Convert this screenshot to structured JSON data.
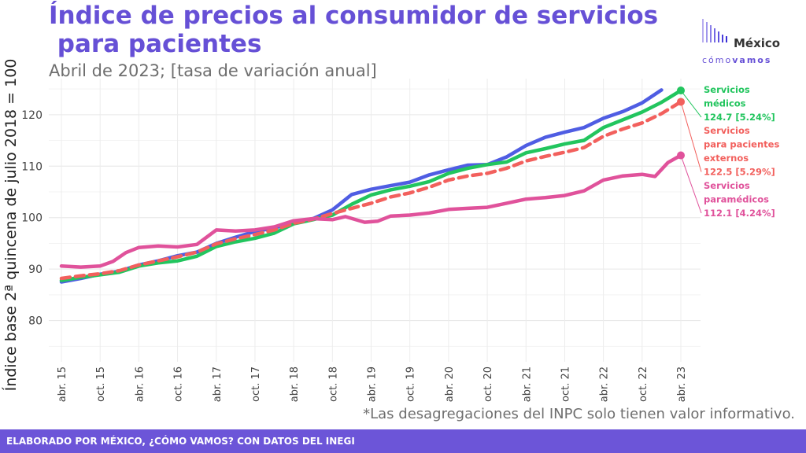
{
  "header": {
    "title": "Índice de precios al consumidor de servicios\n para pacientes",
    "subtitle": "Abril de 2023; [tasa de variación anual]"
  },
  "logo": {
    "name": "México",
    "tagline_a": "cómo",
    "tagline_b": "vamos"
  },
  "note": "*Las desagregaciones del INPC solo tienen valor informativo.",
  "footer": "ELABORADO POR MÉXICO, ¿CÓMO VAMOS? CON DATOS DEL INEGI",
  "colors": {
    "title": "#6650d6",
    "footer": "#6c55d8",
    "series_blue": "#4f5de3",
    "series_green": "#22c55e",
    "series_red": "#f2605d",
    "series_pink": "#e0529b"
  },
  "chart_data": {
    "type": "line",
    "ylabel": "Índice base 2ª quincena de julio 2018 = 100",
    "ylim": [
      72,
      127
    ],
    "yticks": [
      80,
      90,
      100,
      110,
      120
    ],
    "xlim": [
      0,
      96
    ],
    "xticks": [
      {
        "index": 0,
        "label": "abr. 15"
      },
      {
        "index": 6,
        "label": "oct. 15"
      },
      {
        "index": 12,
        "label": "abr. 16"
      },
      {
        "index": 18,
        "label": "oct. 16"
      },
      {
        "index": 24,
        "label": "abr. 17"
      },
      {
        "index": 30,
        "label": "oct. 17"
      },
      {
        "index": 36,
        "label": "abr. 18"
      },
      {
        "index": 42,
        "label": "oct. 18"
      },
      {
        "index": 48,
        "label": "abr. 19"
      },
      {
        "index": 54,
        "label": "oct. 19"
      },
      {
        "index": 60,
        "label": "abr. 20"
      },
      {
        "index": 66,
        "label": "oct. 20"
      },
      {
        "index": 72,
        "label": "abr. 21"
      },
      {
        "index": 78,
        "label": "oct. 21"
      },
      {
        "index": 84,
        "label": "abr. 22"
      },
      {
        "index": 90,
        "label": "oct. 22"
      },
      {
        "index": 96,
        "label": "abr. 23"
      }
    ],
    "grid": true,
    "legend": "direct labels at right",
    "series": [
      {
        "color": "#4f5de3",
        "dash": false,
        "points": [
          [
            0,
            87.5
          ],
          [
            3,
            88.2
          ],
          [
            6,
            89.0
          ],
          [
            9,
            89.6
          ],
          [
            12,
            90.8
          ],
          [
            15,
            91.6
          ],
          [
            18,
            92.6
          ],
          [
            21,
            93.3
          ],
          [
            24,
            95.0
          ],
          [
            27,
            96.2
          ],
          [
            30,
            97.3
          ],
          [
            33,
            98.0
          ],
          [
            36,
            99.0
          ],
          [
            39,
            99.8
          ],
          [
            42,
            101.5
          ],
          [
            45,
            104.5
          ],
          [
            48,
            105.5
          ],
          [
            51,
            106.2
          ],
          [
            54,
            106.9
          ],
          [
            57,
            108.3
          ],
          [
            60,
            109.3
          ],
          [
            63,
            110.2
          ],
          [
            66,
            110.3
          ],
          [
            69,
            111.8
          ],
          [
            72,
            114.0
          ],
          [
            75,
            115.6
          ],
          [
            78,
            116.6
          ],
          [
            81,
            117.5
          ],
          [
            84,
            119.3
          ],
          [
            87,
            120.6
          ],
          [
            90,
            122.3
          ],
          [
            93,
            124.8
          ]
        ]
      },
      {
        "name": "Servicios médicos",
        "color": "#22c55e",
        "dash": false,
        "label_lines": [
          "Servicios",
          "médicos",
          "124.7 [5.24%]"
        ],
        "points": [
          [
            0,
            87.8
          ],
          [
            3,
            88.4
          ],
          [
            6,
            88.9
          ],
          [
            9,
            89.4
          ],
          [
            12,
            90.6
          ],
          [
            15,
            91.2
          ],
          [
            18,
            91.6
          ],
          [
            21,
            92.5
          ],
          [
            24,
            94.4
          ],
          [
            27,
            95.3
          ],
          [
            30,
            96.0
          ],
          [
            33,
            97.0
          ],
          [
            36,
            98.8
          ],
          [
            39,
            99.6
          ],
          [
            42,
            100.5
          ],
          [
            45,
            102.6
          ],
          [
            48,
            104.4
          ],
          [
            51,
            105.4
          ],
          [
            54,
            106.1
          ],
          [
            57,
            107.0
          ],
          [
            60,
            108.6
          ],
          [
            63,
            109.6
          ],
          [
            66,
            110.3
          ],
          [
            69,
            110.8
          ],
          [
            72,
            112.6
          ],
          [
            75,
            113.4
          ],
          [
            78,
            114.3
          ],
          [
            81,
            115.0
          ],
          [
            84,
            117.5
          ],
          [
            87,
            119.0
          ],
          [
            90,
            120.5
          ],
          [
            93,
            122.4
          ],
          [
            96,
            124.7
          ]
        ]
      },
      {
        "name": "Servicios para pacientes externos",
        "color": "#f2605d",
        "dash": true,
        "label_lines": [
          "Servicios",
          "para pacientes",
          "externos",
          "122.5 [5.29%]"
        ],
        "points": [
          [
            0,
            88.2
          ],
          [
            3,
            88.7
          ],
          [
            6,
            89.1
          ],
          [
            9,
            89.7
          ],
          [
            12,
            90.8
          ],
          [
            15,
            91.6
          ],
          [
            18,
            92.4
          ],
          [
            21,
            93.3
          ],
          [
            24,
            94.9
          ],
          [
            27,
            95.9
          ],
          [
            30,
            96.7
          ],
          [
            33,
            97.6
          ],
          [
            36,
            98.9
          ],
          [
            39,
            99.7
          ],
          [
            42,
            100.8
          ],
          [
            45,
            101.8
          ],
          [
            48,
            102.8
          ],
          [
            51,
            104.0
          ],
          [
            54,
            104.8
          ],
          [
            57,
            105.9
          ],
          [
            60,
            107.3
          ],
          [
            63,
            108.1
          ],
          [
            66,
            108.6
          ],
          [
            69,
            109.6
          ],
          [
            72,
            111.0
          ],
          [
            75,
            111.9
          ],
          [
            78,
            112.7
          ],
          [
            81,
            113.6
          ],
          [
            84,
            115.8
          ],
          [
            87,
            117.2
          ],
          [
            90,
            118.4
          ],
          [
            93,
            120.2
          ],
          [
            96,
            122.5
          ]
        ]
      },
      {
        "name": "Servicios paramédicos",
        "color": "#e0529b",
        "dash": false,
        "label_lines": [
          "Servicios",
          "paramédicos",
          "112.1 [4.24%]"
        ],
        "points": [
          [
            0,
            90.6
          ],
          [
            3,
            90.4
          ],
          [
            6,
            90.6
          ],
          [
            8,
            91.5
          ],
          [
            10,
            93.2
          ],
          [
            12,
            94.2
          ],
          [
            15,
            94.5
          ],
          [
            18,
            94.3
          ],
          [
            21,
            94.8
          ],
          [
            24,
            97.6
          ],
          [
            27,
            97.4
          ],
          [
            30,
            97.6
          ],
          [
            33,
            98.2
          ],
          [
            36,
            99.4
          ],
          [
            39,
            99.8
          ],
          [
            42,
            99.6
          ],
          [
            44,
            100.2
          ],
          [
            47,
            99.1
          ],
          [
            49,
            99.3
          ],
          [
            51,
            100.3
          ],
          [
            54,
            100.5
          ],
          [
            57,
            100.9
          ],
          [
            60,
            101.6
          ],
          [
            63,
            101.8
          ],
          [
            66,
            102.0
          ],
          [
            69,
            102.8
          ],
          [
            72,
            103.6
          ],
          [
            75,
            103.9
          ],
          [
            78,
            104.3
          ],
          [
            81,
            105.2
          ],
          [
            84,
            107.3
          ],
          [
            87,
            108.1
          ],
          [
            90,
            108.4
          ],
          [
            92,
            108.0
          ],
          [
            94,
            110.7
          ],
          [
            96,
            112.1
          ]
        ]
      }
    ]
  }
}
